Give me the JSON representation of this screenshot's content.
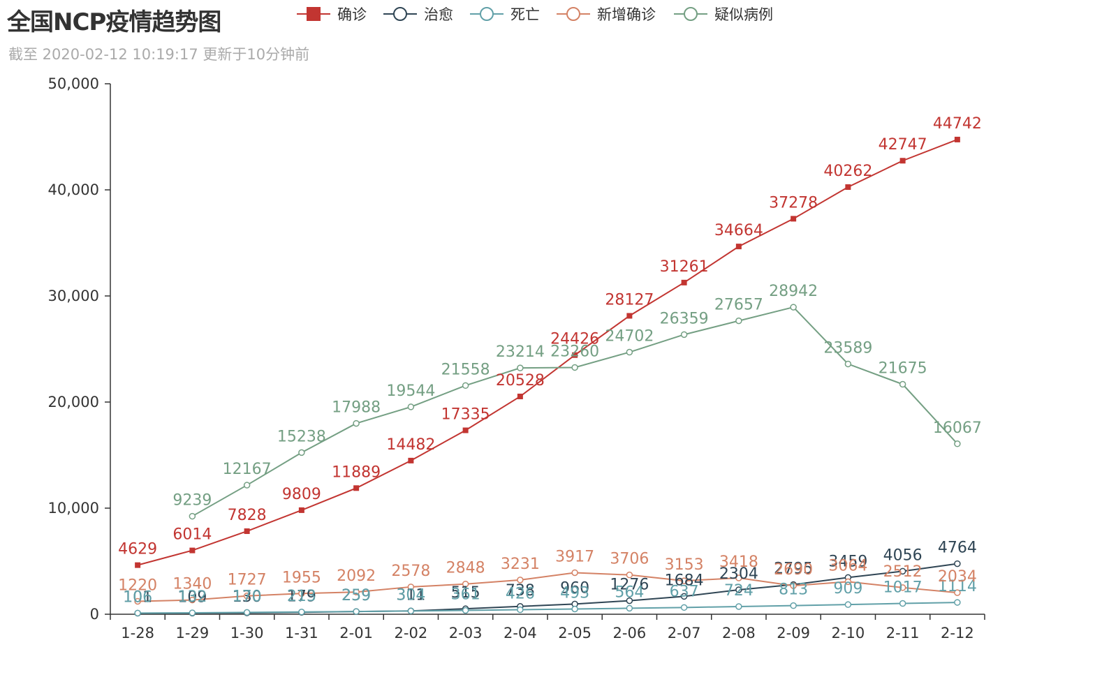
{
  "header": {
    "title": "全国NCP疫情趋势图",
    "subtitle": "截至 2020-02-12 10:19:17 更新于10分钟前"
  },
  "chart_data": {
    "type": "line",
    "categories": [
      "1-28",
      "1-29",
      "1-30",
      "1-31",
      "2-01",
      "2-02",
      "2-03",
      "2-04",
      "2-05",
      "2-06",
      "2-07",
      "2-08",
      "2-09",
      "2-10",
      "2-11",
      "2-12"
    ],
    "ylim": [
      0,
      50000
    ],
    "yticks": [
      0,
      10000,
      20000,
      30000,
      40000,
      50000
    ],
    "ytick_labels": [
      "0",
      "10,000",
      "20,000",
      "30,000",
      "40,000",
      "50,000"
    ],
    "legend_position": "top",
    "grid": false,
    "series": [
      {
        "name": "确诊",
        "color": "#c23531",
        "marker": "square",
        "values": [
          4629,
          6014,
          7828,
          9809,
          11889,
          14482,
          17335,
          20528,
          24426,
          28127,
          31261,
          34664,
          37278,
          40262,
          42747,
          44742
        ]
      },
      {
        "name": "治愈",
        "color": "#2f4554",
        "marker": "circle",
        "values": [
          101,
          109,
          130,
          179,
          259,
          311,
          515,
          738,
          960,
          1276,
          1684,
          2304,
          2795,
          3459,
          4056,
          4764
        ]
      },
      {
        "name": "死亡",
        "color": "#61a0a8",
        "marker": "circle",
        "values": [
          106,
          132,
          170,
          213,
          259,
          304,
          361,
          426,
          493,
          564,
          637,
          724,
          813,
          909,
          1017,
          1114
        ]
      },
      {
        "name": "新增确诊",
        "color": "#d48265",
        "marker": "circle",
        "values": [
          1220,
          1340,
          1727,
          1955,
          2092,
          2578,
          2848,
          3231,
          3917,
          3706,
          3153,
          3418,
          2690,
          3064,
          2512,
          2034
        ]
      },
      {
        "name": "疑似病例",
        "color": "#749f83",
        "marker": "circle",
        "values": [
          null,
          9239,
          12167,
          15238,
          17988,
          19544,
          21558,
          23214,
          23260,
          24702,
          26359,
          27657,
          28942,
          23589,
          21675,
          16067
        ]
      }
    ]
  }
}
